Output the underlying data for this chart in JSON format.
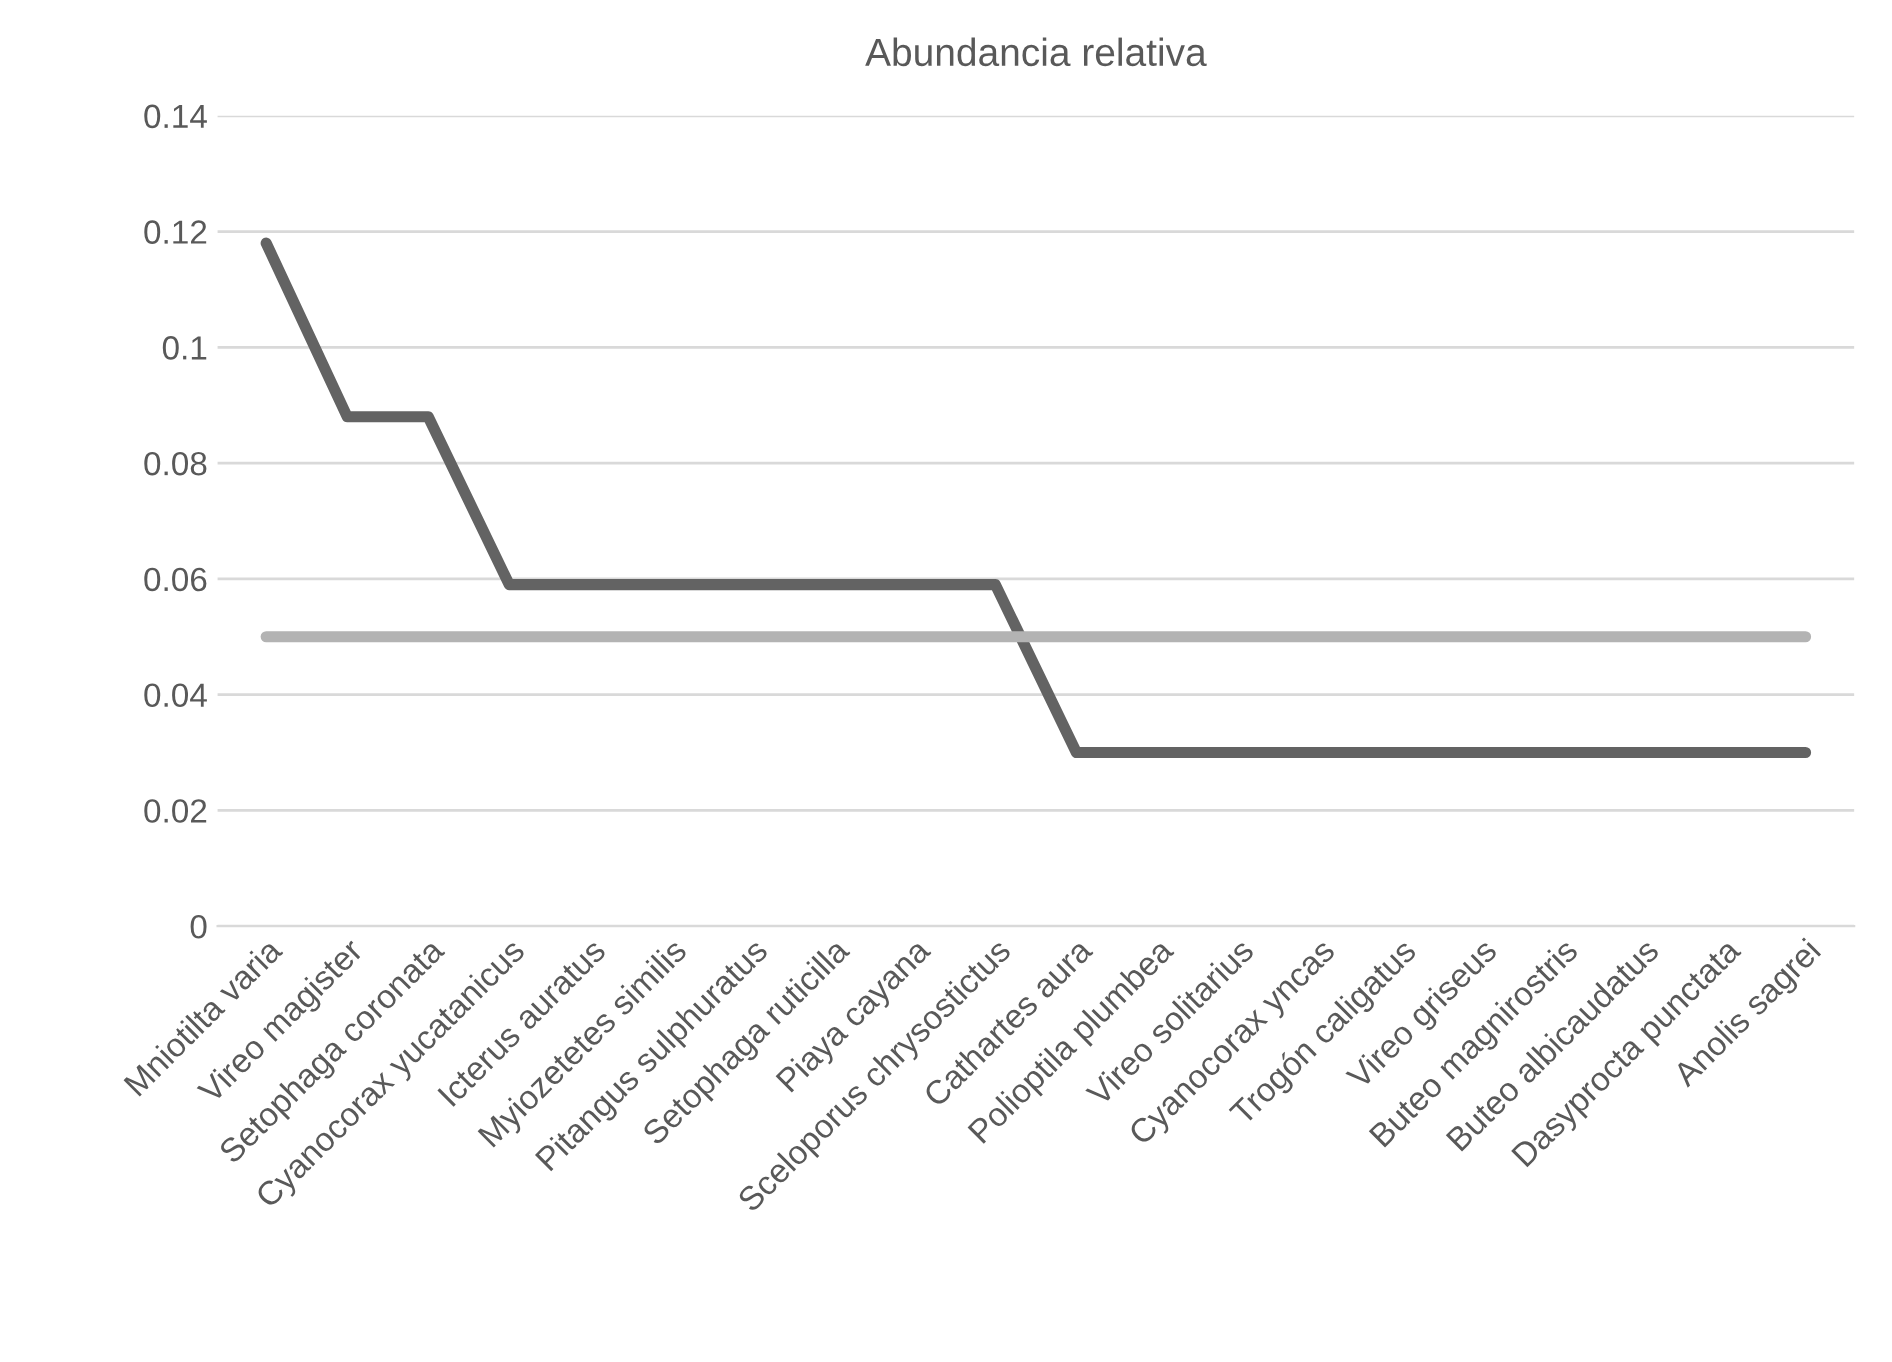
{
  "chart_data": {
    "type": "line",
    "title": "Abundancia relativa",
    "categories": [
      "Mniotilta varia",
      "Vireo magister",
      "Setophaga coronata",
      "Cyanocorax yucatanicus",
      "Icterus auratus",
      "Myiozetetes similis",
      "Pitangus sulphuratus",
      "Setophaga ruticilla",
      "Piaya cayana",
      "Sceloporus chrysostictus",
      "Cathartes aura",
      "Polioptila plumbea",
      "Vireo solitarius",
      "Cyanocorax yncas",
      "Trogón caligatus",
      "Vireo griseus",
      "Buteo magnirostris",
      "Buteo albicaudatus",
      "Dasyprocta punctata",
      "Anolis sagrei"
    ],
    "series": [
      {
        "color": "#636363",
        "values": [
          0.118,
          0.088,
          0.088,
          0.059,
          0.059,
          0.059,
          0.059,
          0.059,
          0.059,
          0.059,
          0.03,
          0.03,
          0.03,
          0.03,
          0.03,
          0.03,
          0.03,
          0.03,
          0.03,
          0.03
        ]
      },
      {
        "color": "#b3b3b3",
        "values": [
          0.05,
          0.05,
          0.05,
          0.05,
          0.05,
          0.05,
          0.05,
          0.05,
          0.05,
          0.05,
          0.05,
          0.05,
          0.05,
          0.05,
          0.05,
          0.05,
          0.05,
          0.05,
          0.05,
          0.05
        ]
      }
    ],
    "ylim": [
      0,
      0.14
    ],
    "yticks": [
      0,
      0.02,
      0.04,
      0.06,
      0.08,
      0.1,
      0.12,
      0.14
    ],
    "grid": "y",
    "legend": false,
    "marker": "none",
    "line_style": "solid"
  }
}
